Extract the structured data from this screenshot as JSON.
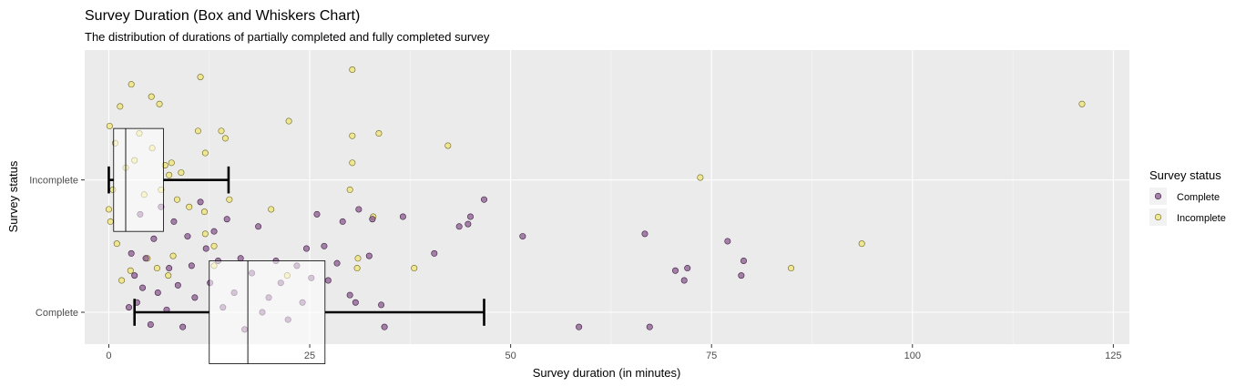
{
  "chart_data": {
    "type": "boxplot",
    "title": "Survey Duration (Box and Whiskers Chart)",
    "subtitle": "The distribution of durations of partially completed and fully completed survey",
    "xlabel": "Survey duration (in minutes)",
    "ylabel": "Survey status",
    "xlim": [
      -3,
      127
    ],
    "x_ticks": [
      0,
      25,
      50,
      75,
      100,
      125
    ],
    "x_tick_labels": [
      "0",
      "25",
      "50",
      "75",
      "100",
      "125"
    ],
    "categories": [
      "Incomplete",
      "Complete"
    ],
    "grid": true,
    "orientation": "horizontal",
    "legend": {
      "title": "Survey status",
      "position": "right",
      "entries": [
        {
          "label": "Complete",
          "color": "#8B5A8F"
        },
        {
          "label": "Incomplete",
          "color": "#F2E35A"
        }
      ]
    },
    "boxes": [
      {
        "category": "Incomplete",
        "whisker_low": 0.0,
        "q1": 0.6,
        "median": 2.1,
        "q3": 6.8,
        "whisker_high": 14.9
      },
      {
        "category": "Complete",
        "whisker_low": 3.2,
        "q1": 12.5,
        "median": 17.3,
        "q3": 26.9,
        "whisker_high": 46.7
      }
    ],
    "series": [
      {
        "name": "Incomplete",
        "color": "#F2E35A",
        "points": [
          [
            121.1,
            1.38
          ],
          [
            73.6,
            1.08
          ],
          [
            93.7,
            0.81
          ],
          [
            84.9,
            0.71
          ],
          [
            42.2,
            1.21
          ],
          [
            38.0,
            0.71
          ],
          [
            33.6,
            1.26
          ],
          [
            32.9,
            0.92
          ],
          [
            31.0,
            0.75
          ],
          [
            30.9,
            0.71
          ],
          [
            30.3,
            1.52
          ],
          [
            30.3,
            1.25
          ],
          [
            30.3,
            1.14
          ],
          [
            30.0,
            1.03
          ],
          [
            22.4,
            1.31
          ],
          [
            22.2,
            0.68
          ],
          [
            20.2,
            0.95
          ],
          [
            15.0,
            0.99
          ],
          [
            14.5,
            1.24
          ],
          [
            14.0,
            1.27
          ],
          [
            13.1,
            0.8
          ],
          [
            13.1,
            0.72
          ],
          [
            12.0,
            1.18
          ],
          [
            12.0,
            0.85
          ],
          [
            11.9,
            0.94
          ],
          [
            11.4,
            1.49
          ],
          [
            11.1,
            1.27
          ],
          [
            10.0,
            0.96
          ],
          [
            9.0,
            1.1
          ],
          [
            8.5,
            0.99
          ],
          [
            8.0,
            0.76
          ],
          [
            7.8,
            1.14
          ],
          [
            7.5,
            1.09
          ],
          [
            7.4,
            0.68
          ],
          [
            7.0,
            1.13
          ],
          [
            6.5,
            1.03
          ],
          [
            6.3,
            1.38
          ],
          [
            6.0,
            0.71
          ],
          [
            5.4,
            1.2
          ],
          [
            5.3,
            1.41
          ],
          [
            4.8,
            0.75
          ],
          [
            4.4,
            1.01
          ],
          [
            3.8,
            1.26
          ],
          [
            3.2,
            1.15
          ],
          [
            2.8,
            1.46
          ],
          [
            2.7,
            0.7
          ],
          [
            2.1,
            1.12
          ],
          [
            1.6,
            0.66
          ],
          [
            1.4,
            1.37
          ],
          [
            1.0,
            0.81
          ],
          [
            0.8,
            1.22
          ],
          [
            0.5,
            1.03
          ],
          [
            0.2,
            0.9
          ],
          [
            0.1,
            1.29
          ],
          [
            0.0,
            0.95
          ]
        ]
      },
      {
        "name": "Complete",
        "color": "#8B5A8F",
        "points": [
          [
            58.5,
            0.47
          ],
          [
            67.3,
            0.47
          ],
          [
            66.7,
            0.85
          ],
          [
            70.5,
            0.7
          ],
          [
            72.0,
            0.71
          ],
          [
            71.6,
            0.66
          ],
          [
            77.0,
            0.82
          ],
          [
            79.0,
            0.74
          ],
          [
            78.7,
            0.68
          ],
          [
            51.5,
            0.84
          ],
          [
            46.7,
            0.99
          ],
          [
            45.0,
            0.92
          ],
          [
            44.7,
            0.89
          ],
          [
            43.6,
            0.88
          ],
          [
            40.5,
            0.77
          ],
          [
            36.6,
            0.92
          ],
          [
            34.3,
            0.47
          ],
          [
            33.9,
            0.56
          ],
          [
            32.8,
            0.91
          ],
          [
            32.4,
            0.76
          ],
          [
            31.1,
            0.95
          ],
          [
            30.7,
            0.57
          ],
          [
            30.0,
            0.6
          ],
          [
            29.1,
            0.9
          ],
          [
            28.4,
            0.73
          ],
          [
            27.3,
            0.66
          ],
          [
            26.8,
            0.8
          ],
          [
            25.9,
            0.93
          ],
          [
            25.2,
            0.67
          ],
          [
            24.6,
            0.79
          ],
          [
            24.1,
            0.57
          ],
          [
            23.4,
            0.72
          ],
          [
            22.3,
            0.5
          ],
          [
            21.4,
            0.65
          ],
          [
            20.8,
            0.74
          ],
          [
            19.9,
            0.59
          ],
          [
            19.1,
            0.53
          ],
          [
            18.6,
            0.88
          ],
          [
            17.8,
            0.69
          ],
          [
            16.9,
            0.46
          ],
          [
            16.4,
            0.75
          ],
          [
            15.6,
            0.61
          ],
          [
            14.7,
            0.91
          ],
          [
            14.2,
            0.55
          ],
          [
            13.6,
            0.74
          ],
          [
            13.1,
            0.86
          ],
          [
            12.6,
            0.65
          ],
          [
            12.1,
            0.79
          ],
          [
            11.4,
            0.98
          ],
          [
            10.7,
            0.59
          ],
          [
            10.3,
            0.72
          ],
          [
            9.8,
            0.84
          ],
          [
            9.2,
            0.47
          ],
          [
            8.6,
            0.64
          ],
          [
            8.1,
            0.9
          ],
          [
            7.5,
            0.71
          ],
          [
            7.2,
            0.54
          ],
          [
            6.5,
            0.96
          ],
          [
            6.1,
            0.61
          ],
          [
            5.6,
            0.83
          ],
          [
            5.2,
            0.48
          ],
          [
            4.6,
            0.75
          ],
          [
            4.2,
            0.63
          ],
          [
            3.9,
            0.93
          ],
          [
            3.5,
            0.57
          ],
          [
            3.2,
            0.68
          ],
          [
            2.8,
            0.77
          ],
          [
            2.5,
            0.55
          ]
        ]
      }
    ]
  }
}
